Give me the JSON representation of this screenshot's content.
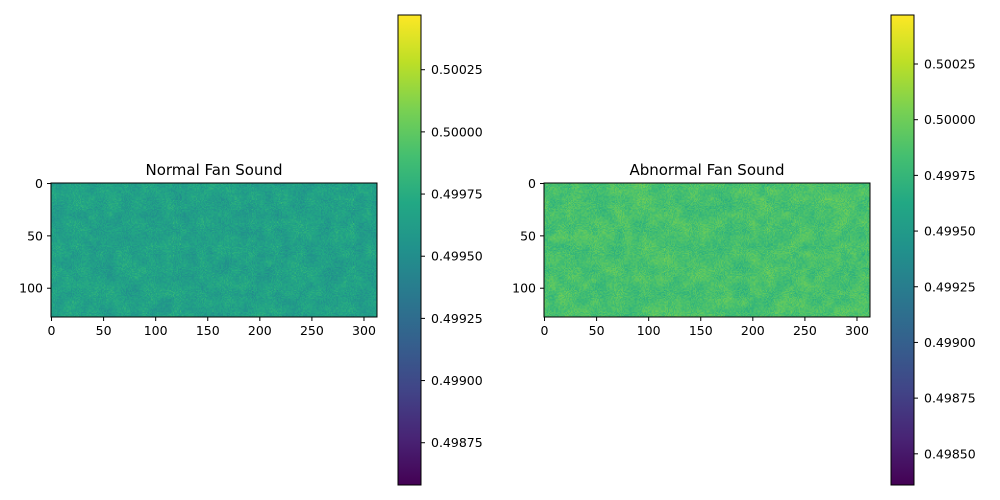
{
  "chart_data": [
    {
      "type": "heatmap",
      "title": "Normal Fan Sound",
      "xlabel": "",
      "ylabel": "",
      "x_ticks": [
        "0",
        "50",
        "100",
        "150",
        "200",
        "250",
        "300"
      ],
      "y_ticks": [
        "0",
        "50",
        "100"
      ],
      "xlim": [
        -0.5,
        312.5
      ],
      "ylim": [
        127.5,
        -0.5
      ],
      "colormap": "viridis",
      "colorbar": {
        "vmin": 0.49858,
        "vmax": 0.50047,
        "ticks": [
          "0.49875",
          "0.49900",
          "0.49925",
          "0.49950",
          "0.49975",
          "0.50000",
          "0.50025"
        ]
      },
      "value_center": 0.49965,
      "value_spread": 0.00015
    },
    {
      "type": "heatmap",
      "title": "Abnormal Fan Sound",
      "xlabel": "",
      "ylabel": "",
      "x_ticks": [
        "0",
        "50",
        "100",
        "150",
        "200",
        "250",
        "300"
      ],
      "y_ticks": [
        "0",
        "50",
        "100"
      ],
      "xlim": [
        -0.5,
        312.5
      ],
      "ylim": [
        127.5,
        -0.5
      ],
      "colormap": "viridis",
      "colorbar": {
        "vmin": 0.49836,
        "vmax": 0.50047,
        "ticks": [
          "0.49850",
          "0.49875",
          "0.49900",
          "0.49925",
          "0.49950",
          "0.49975",
          "0.50000",
          "0.50025"
        ]
      },
      "value_center": 0.49985,
      "value_spread": 0.00015
    }
  ]
}
